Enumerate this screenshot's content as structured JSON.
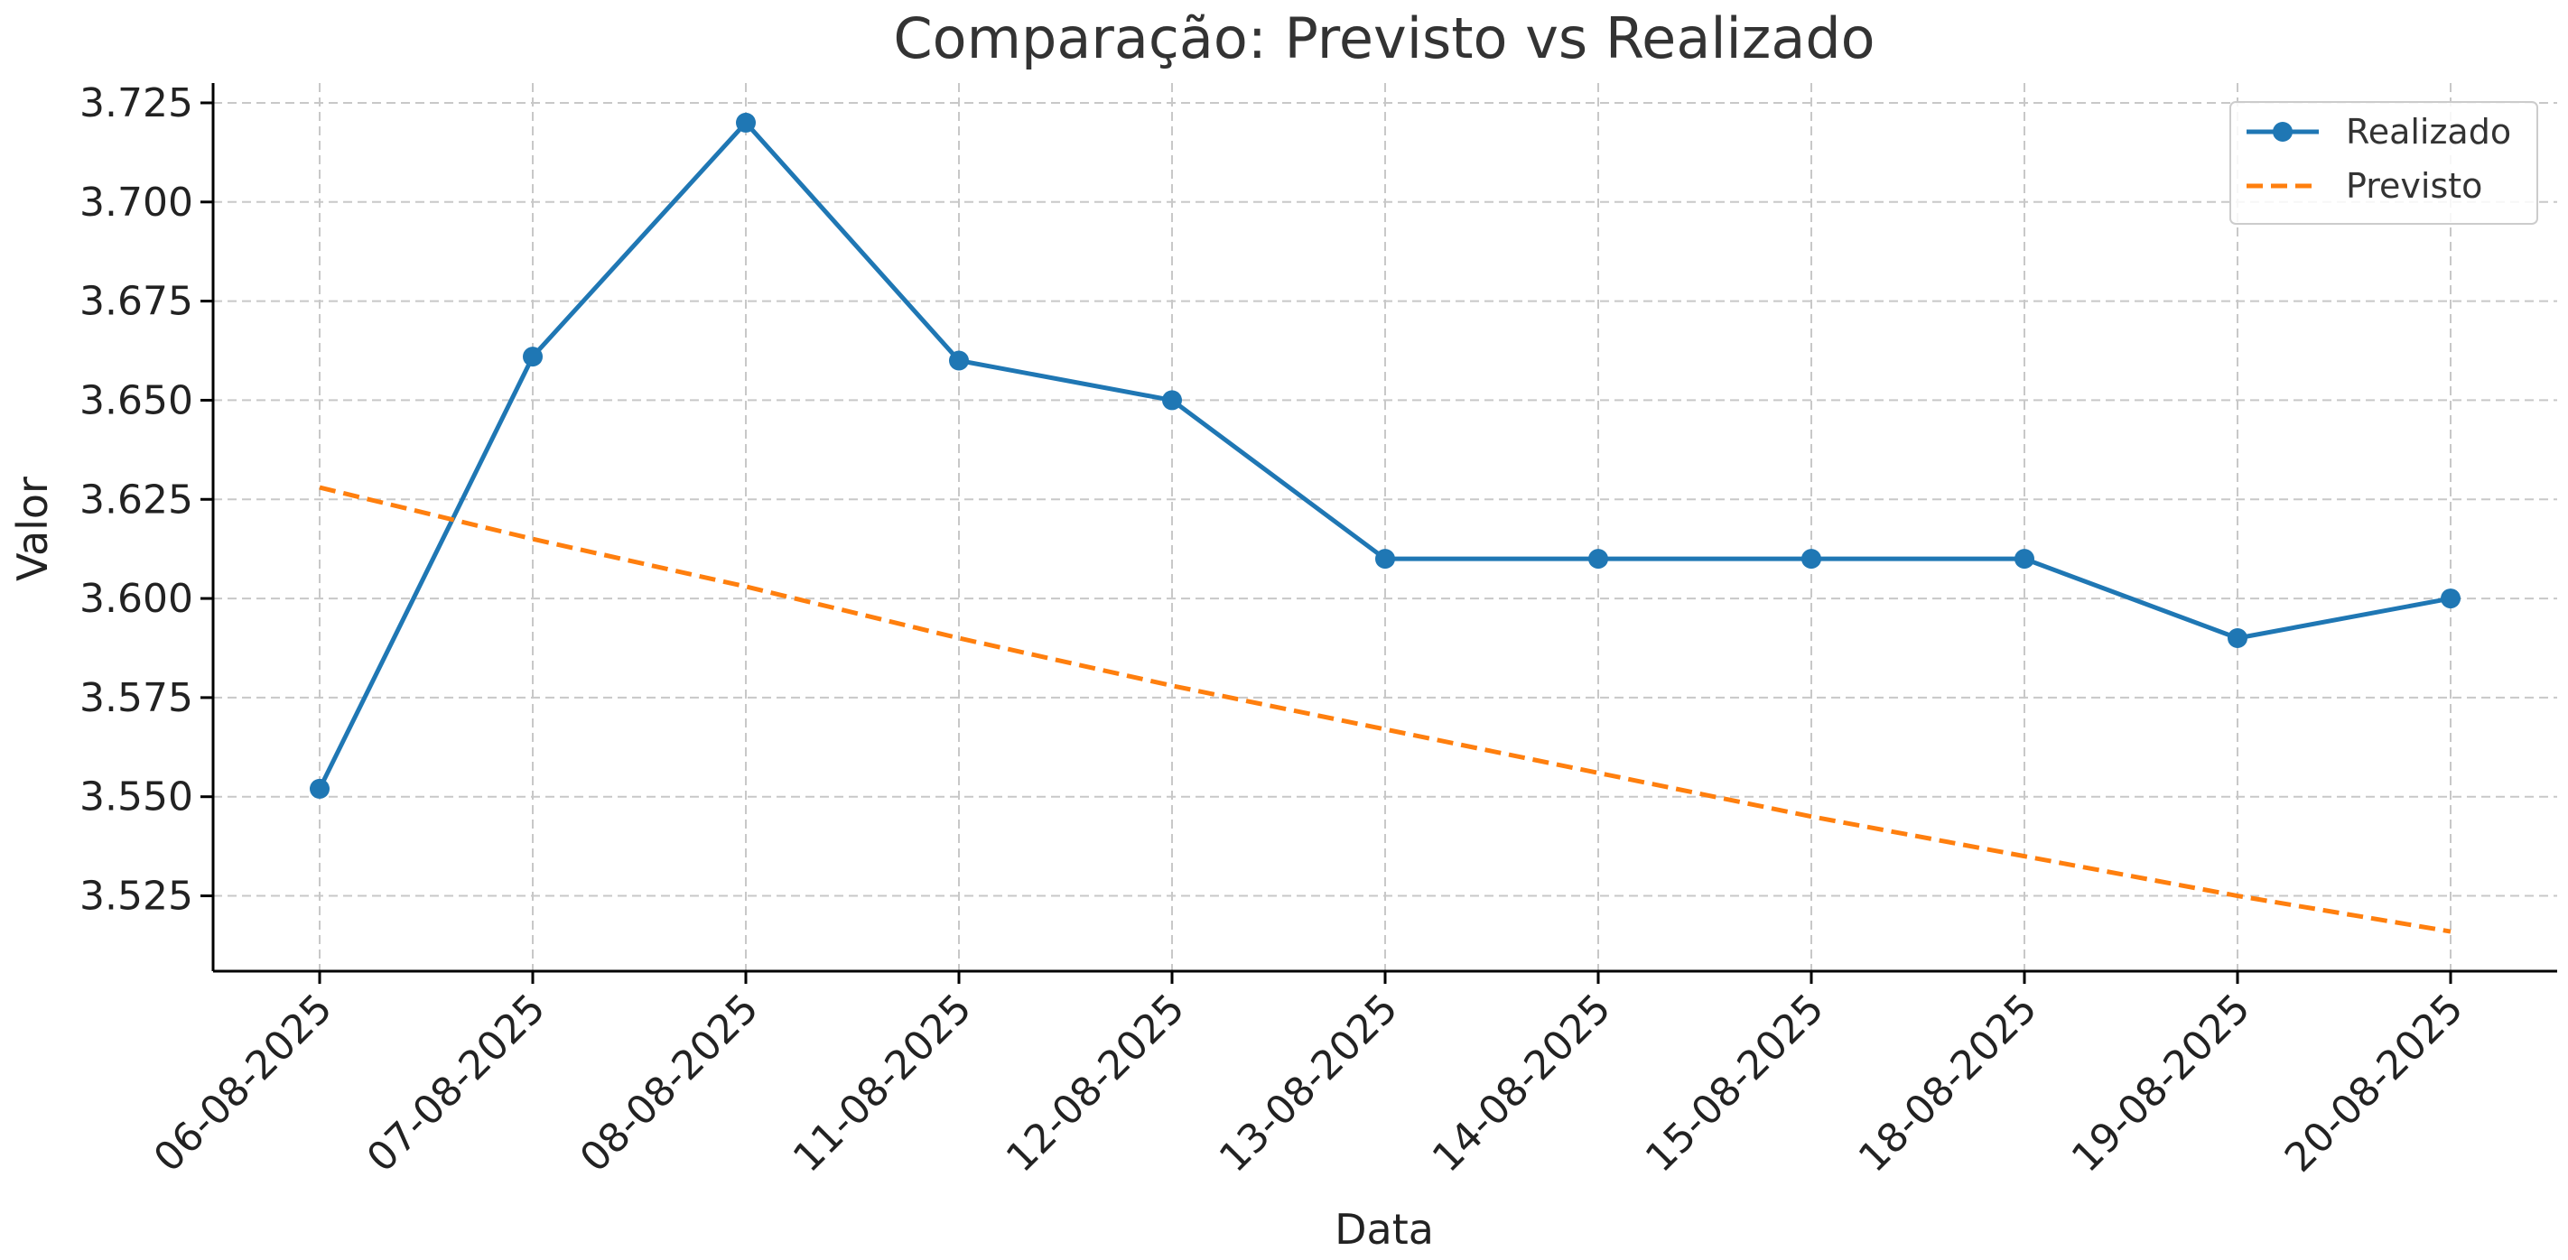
{
  "chart_data": {
    "type": "line",
    "title": "Comparação: Previsto vs Realizado",
    "xlabel": "Data",
    "ylabel": "Valor",
    "categories": [
      "06-08-2025",
      "07-08-2025",
      "08-08-2025",
      "11-08-2025",
      "12-08-2025",
      "13-08-2025",
      "14-08-2025",
      "15-08-2025",
      "18-08-2025",
      "19-08-2025",
      "20-08-2025"
    ],
    "ylim": [
      3.506,
      3.73
    ],
    "yticks": [
      3.525,
      3.55,
      3.575,
      3.6,
      3.625,
      3.65,
      3.675,
      3.7,
      3.725
    ],
    "ytick_labels": [
      "3.525",
      "3.550",
      "3.575",
      "3.600",
      "3.625",
      "3.650",
      "3.675",
      "3.700",
      "3.725"
    ],
    "grid": true,
    "legend_position": "top-right",
    "series": [
      {
        "name": "Realizado",
        "color": "#1f77b4",
        "style": "solid",
        "marker": "circle",
        "values": [
          3.552,
          3.661,
          3.72,
          3.66,
          3.65,
          3.61,
          3.61,
          3.61,
          3.61,
          3.59,
          3.6
        ]
      },
      {
        "name": "Previsto",
        "color": "#ff7f0e",
        "style": "dashed",
        "marker": "none",
        "values": [
          3.628,
          3.615,
          3.603,
          3.59,
          3.578,
          3.567,
          3.556,
          3.545,
          3.535,
          3.525,
          3.516
        ]
      }
    ]
  }
}
